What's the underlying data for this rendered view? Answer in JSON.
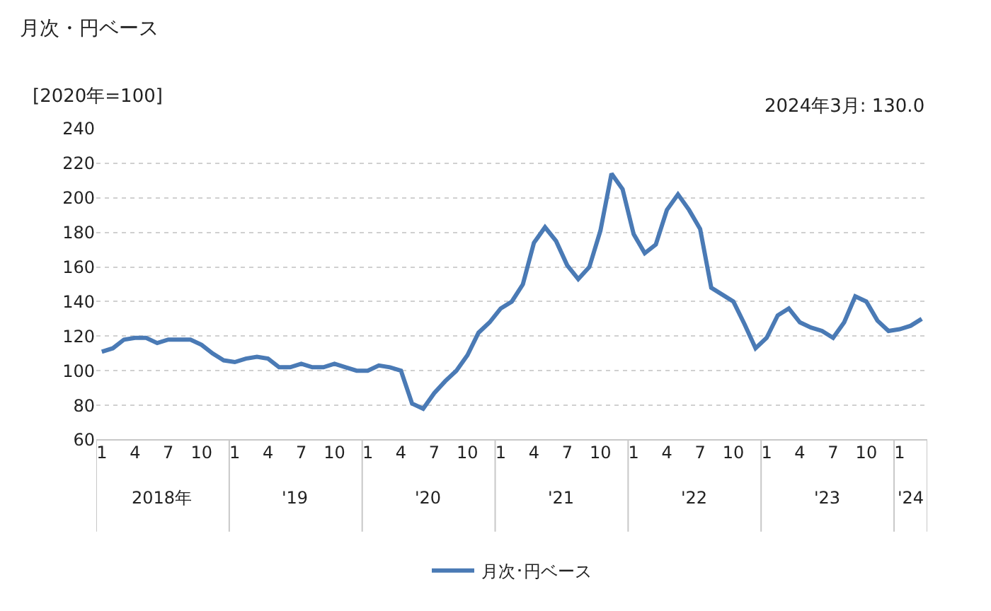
{
  "chart_data": {
    "type": "line",
    "title": "月次・円ベース",
    "ylabel": "[2020年=100]",
    "categories": [
      "1",
      null,
      null,
      "4",
      null,
      null,
      "7",
      null,
      null,
      "10",
      null,
      null,
      "1",
      null,
      null,
      "4",
      null,
      null,
      "7",
      null,
      null,
      "10",
      null,
      null,
      "1",
      null,
      null,
      "4",
      null,
      null,
      "7",
      null,
      null,
      "10",
      null,
      null,
      "1",
      null,
      null,
      "4",
      null,
      null,
      "7",
      null,
      null,
      "10",
      null,
      null,
      "1",
      null,
      null,
      "4",
      null,
      null,
      "7",
      null,
      null,
      "10",
      null,
      null,
      "1",
      null,
      null,
      "4",
      null,
      null,
      "7",
      null,
      null,
      "10",
      null,
      null,
      "1",
      null,
      null
    ],
    "series": [
      {
        "name": "月次･円ベース",
        "color": "#4a7ab5",
        "values": [
          111,
          113,
          118,
          119,
          119,
          116,
          118,
          118,
          118,
          115,
          110,
          106,
          105,
          107,
          108,
          107,
          102,
          102,
          104,
          102,
          102,
          104,
          102,
          100,
          100,
          103,
          102,
          100,
          81,
          78,
          87,
          94,
          100,
          109,
          122,
          128,
          136,
          140,
          150,
          174,
          183,
          175,
          161,
          153,
          160,
          181,
          214,
          205,
          179,
          168,
          173,
          193,
          202,
          193,
          182,
          148,
          144,
          140,
          127,
          113,
          119,
          132,
          136,
          128,
          125,
          123,
          119,
          128,
          143,
          140,
          129,
          123,
          124,
          126,
          130
        ]
      }
    ],
    "annotations": [
      "2024年3月: 130.0",
      "2018年",
      "'19",
      "'20",
      "'21",
      "'22",
      "'23",
      "'24"
    ],
    "ylim": [
      60,
      240
    ],
    "yticks": [
      60,
      80,
      100,
      120,
      140,
      160,
      180,
      200,
      220,
      240
    ],
    "grid": "y",
    "legend": "bottom",
    "marker": "none",
    "line_style": "solid"
  }
}
